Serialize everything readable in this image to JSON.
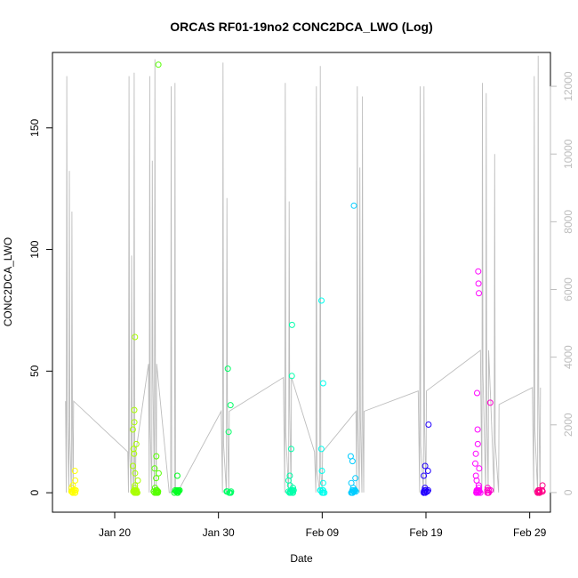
{
  "chart_data": {
    "type": "scatter",
    "title": "ORCAS RF01-19no2 CONC2DCA_LWO (Log)",
    "xlabel": "Date",
    "ylabel": "CONC2DCA_LWO",
    "x_axis": {
      "kind": "date",
      "range": [
        "2016-01-14",
        "2016-03-02"
      ],
      "ticks": [
        {
          "value": "2016-01-20",
          "label": "Jan 20"
        },
        {
          "value": "2016-01-30",
          "label": "Jan 30"
        },
        {
          "value": "2016-02-09",
          "label": "Feb 09"
        },
        {
          "value": "2016-02-19",
          "label": "Feb 19"
        },
        {
          "value": "2016-02-29",
          "label": "Feb 29"
        }
      ]
    },
    "y_axis": {
      "range": [
        -8,
        181
      ],
      "ticks": [
        0,
        50,
        100,
        150
      ]
    },
    "y2_axis": {
      "range": [
        -580,
        13000
      ],
      "ticks": [
        0,
        2000,
        4000,
        6000,
        8000,
        10000,
        12000
      ]
    },
    "grid": false,
    "legend": "none",
    "colors": {
      "secondary_series": "#bdbdbd",
      "axis": "#000000"
    },
    "series": [
      {
        "axis": "left",
        "marker": "open-circle",
        "flights": [
          {
            "date": "2016-01-16",
            "color": "#ffff00",
            "values": [
              0,
              0.5,
              1,
              2,
              3,
              5,
              9
            ]
          },
          {
            "date": "2016-01-22",
            "color": "#aaff00",
            "values": [
              0,
              0.5,
              1,
              2,
              3,
              5,
              8,
              11,
              16,
              18,
              20,
              26,
              29,
              34,
              64
            ]
          },
          {
            "date": "2016-01-24",
            "color": "#55ff00",
            "values": [
              0,
              0.5,
              1,
              2,
              6,
              8,
              10,
              15,
              176
            ]
          },
          {
            "date": "2016-01-26",
            "color": "#00ff22",
            "values": [
              0,
              0.5,
              1,
              7
            ]
          },
          {
            "date": "2016-01-31",
            "color": "#00ff66",
            "values": [
              0,
              0.5,
              25,
              36,
              51
            ]
          },
          {
            "date": "2016-02-06",
            "color": "#00ffaa",
            "values": [
              0,
              0.5,
              1,
              2,
              3,
              5,
              7,
              18,
              48,
              69
            ]
          },
          {
            "date": "2016-02-09",
            "color": "#00ffee",
            "values": [
              0,
              1,
              4,
              9,
              18,
              45,
              79
            ]
          },
          {
            "date": "2016-02-12",
            "color": "#00ccff",
            "values": [
              0,
              0.5,
              1,
              2,
              4,
              6,
              13,
              15,
              118
            ]
          },
          {
            "date": "2016-02-19",
            "color": "#2200ff",
            "values": [
              0,
              0.5,
              1,
              2,
              7,
              9,
              11,
              28
            ]
          },
          {
            "date": "2016-02-24",
            "color": "#ff00ff",
            "values": [
              0,
              0.5,
              1,
              2,
              3,
              5,
              7,
              10,
              12,
              16,
              20,
              26,
              41,
              82,
              86,
              91
            ]
          },
          {
            "date": "2016-02-25",
            "color": "#ff00cc",
            "values": [
              0,
              1,
              2,
              37
            ]
          },
          {
            "date": "2016-03-01",
            "color": "#ff0088",
            "values": [
              0,
              0.5,
              1,
              3
            ]
          }
        ]
      },
      {
        "axis": "right",
        "style": "line",
        "color": "#bdbdbd",
        "flights": [
          {
            "start": "2016-01-15",
            "end": "2016-01-16",
            "low": 2700,
            "peaks": [
              12300,
              9500,
              8300
            ]
          },
          {
            "start": "2016-01-21",
            "end": "2016-01-22",
            "low": 1200,
            "peaks": [
              12300,
              7000,
              12400
            ]
          },
          {
            "start": "2016-01-23",
            "end": "2016-01-24",
            "low": 3800,
            "peaks": [
              12300,
              9800,
              12800
            ]
          },
          {
            "start": "2016-01-25",
            "end": "2016-01-26",
            "low": 0,
            "peaks": [
              12000,
              12100
            ]
          },
          {
            "start": "2016-01-30",
            "end": "2016-01-31",
            "low": 2400,
            "peaks": [
              12700,
              8700
            ]
          },
          {
            "start": "2016-02-05",
            "end": "2016-02-06",
            "low": 3400,
            "peaks": [
              12100,
              8600
            ]
          },
          {
            "start": "2016-02-08",
            "end": "2016-02-09",
            "low": 1200,
            "peaks": [
              12000,
              12600
            ]
          },
          {
            "start": "2016-02-12",
            "end": "2016-02-13",
            "low": 2400,
            "peaks": [
              12000,
              9600,
              11700
            ]
          },
          {
            "start": "2016-02-18",
            "end": "2016-02-19",
            "low": 3000,
            "peaks": [
              12000,
              12000
            ]
          },
          {
            "start": "2016-02-24",
            "end": "2016-02-25",
            "low": 4200,
            "peaks": [
              12100,
              11800
            ]
          },
          {
            "start": "2016-02-25",
            "end": "2016-02-26",
            "low": 2600,
            "peaks": [
              10000
            ]
          },
          {
            "start": "2016-02-29",
            "end": "2016-03-01",
            "low": 3100,
            "peaks": [
              12300,
              12900
            ]
          }
        ]
      }
    ]
  }
}
